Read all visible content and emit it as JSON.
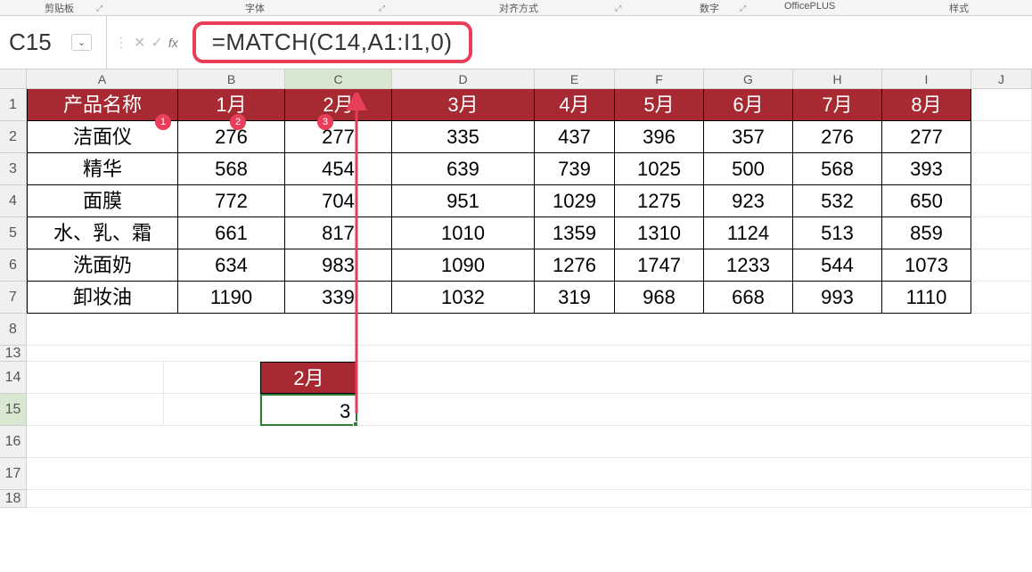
{
  "ribbon": {
    "groups": [
      "剪贴板",
      "字体",
      "对齐方式",
      "数字",
      "OfficePLUS",
      "样式"
    ],
    "group_positions": [
      50,
      275,
      560,
      785,
      900,
      1065
    ]
  },
  "formula_bar": {
    "cell_ref": "C15",
    "formula": "=MATCH(C14,A1:I1,0)",
    "fx_label": "fx",
    "highlight_color": "#e83e5a"
  },
  "columns": {
    "letters": [
      "A",
      "B",
      "C",
      "D",
      "E",
      "F",
      "G",
      "H",
      "I",
      "J"
    ],
    "widths": [
      170,
      120,
      120,
      160,
      90,
      100,
      100,
      100,
      100,
      68
    ],
    "selected_index": 2
  },
  "row_labels": [
    "1",
    "2",
    "3",
    "4",
    "5",
    "6",
    "7",
    "8",
    "13",
    "14",
    "15",
    "16",
    "17",
    "18"
  ],
  "selected_row_index": 10,
  "table": {
    "header_bg": "#a72a33",
    "header_fg": "#ffffff",
    "headers": [
      "产品名称",
      "1月",
      "2月",
      "3月",
      "4月",
      "5月",
      "6月",
      "7月",
      "8月"
    ],
    "rows": [
      [
        "洁面仪",
        276,
        277,
        335,
        437,
        396,
        357,
        276,
        277
      ],
      [
        "精华",
        568,
        454,
        639,
        739,
        1025,
        500,
        568,
        393
      ],
      [
        "面膜",
        772,
        704,
        951,
        1029,
        1275,
        923,
        532,
        650
      ],
      [
        "水、乳、霜",
        661,
        817,
        1010,
        1359,
        1310,
        1124,
        513,
        859
      ],
      [
        "洗面奶",
        634,
        983,
        1090,
        1276,
        1747,
        1233,
        544,
        1073
      ],
      [
        "卸妆油",
        1190,
        339,
        1032,
        319,
        968,
        668,
        993,
        1110
      ]
    ]
  },
  "lookup": {
    "label": "2月",
    "result": "3"
  },
  "badges": [
    "1",
    "2",
    "3"
  ],
  "arrow": {
    "color": "#e83e5a",
    "stroke_width": 3
  }
}
